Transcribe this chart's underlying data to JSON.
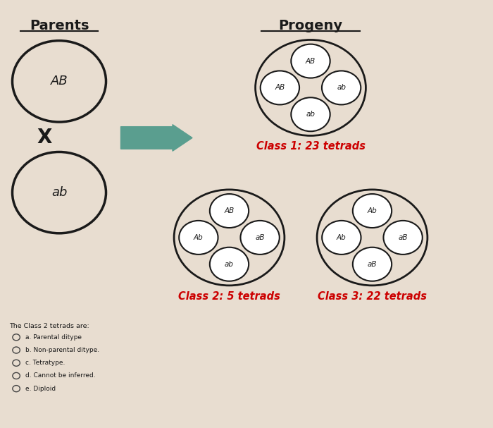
{
  "background_color": "#e8ddd0",
  "title_parents": "Parents",
  "title_progeny": "Progeny",
  "parent1_label": "AB",
  "parent2_label": "ab",
  "cross_symbol": "X",
  "class1_label": "Class 1: 23 tetrads",
  "class2_label": "Class 2: 5 tetrads",
  "class3_label": "Class 3: 22 tetrads",
  "arrow_color": "#5a9e8f",
  "circle_edgecolor": "#1a1a1a",
  "label_color_black": "#1a1a1a",
  "label_color_red": "#cc0000",
  "question_text": "The Class 2 tetrads are:",
  "options": [
    "a. Parental ditype",
    "b. Non-parental ditype.",
    "c. Tetratype.",
    "d. Cannot be inferred.",
    "e. Diploid"
  ]
}
